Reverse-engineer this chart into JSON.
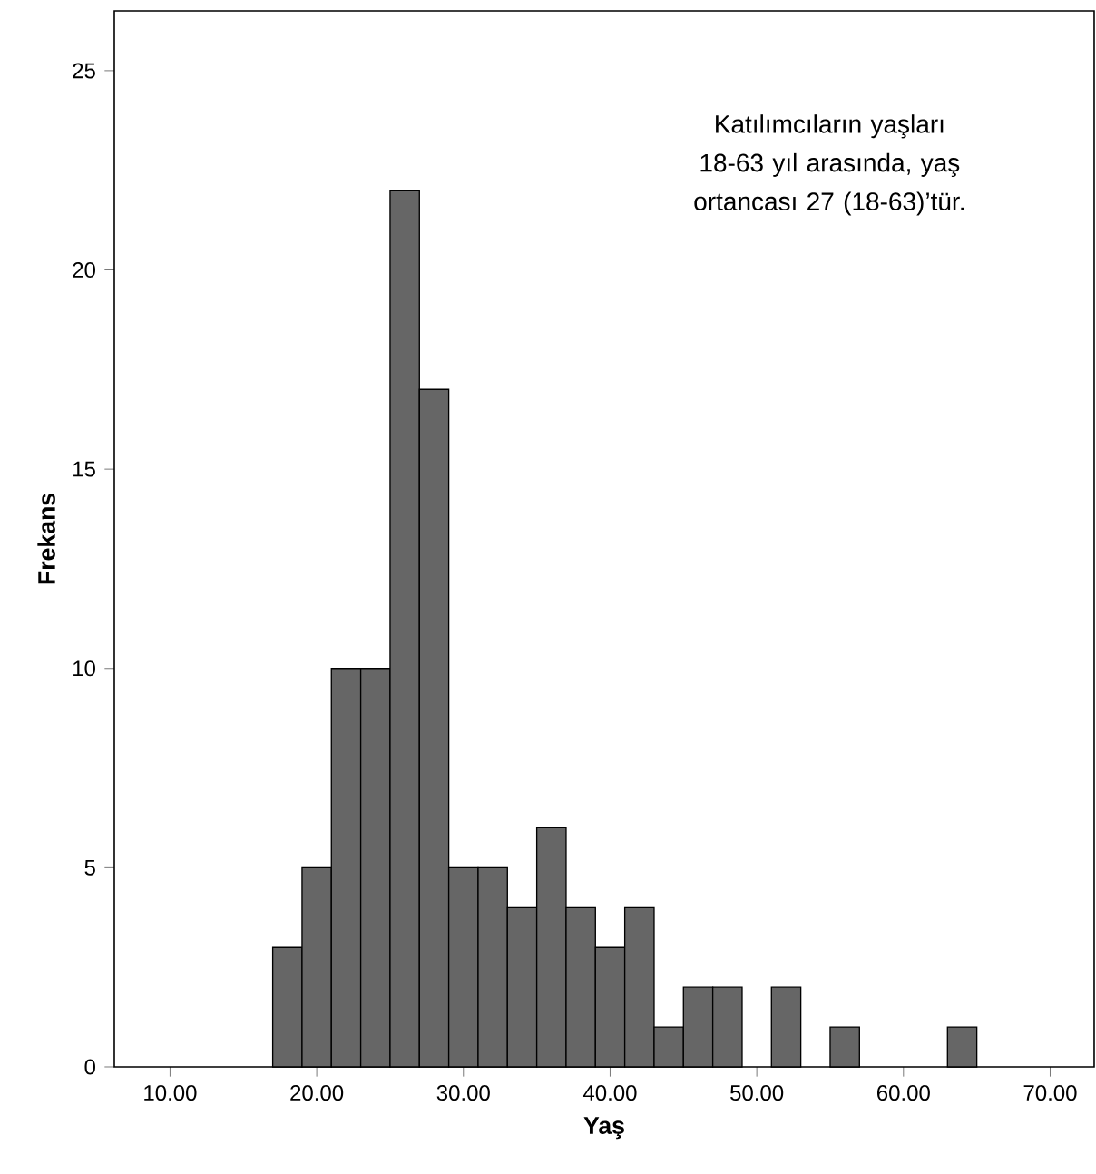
{
  "chart_data": {
    "type": "histogram",
    "xlabel": "Yaş",
    "ylabel": "Frekans",
    "bins": [
      17,
      19,
      21,
      23,
      25,
      27,
      29,
      31,
      33,
      35,
      37,
      39,
      41,
      43,
      45,
      47,
      49,
      51,
      53,
      55,
      57,
      59,
      61,
      63,
      65
    ],
    "values": [
      3,
      5,
      10,
      10,
      22,
      17,
      5,
      5,
      4,
      6,
      4,
      3,
      4,
      1,
      2,
      2,
      0,
      2,
      0,
      1,
      0,
      0,
      0,
      1
    ],
    "color": "#666666",
    "xlim": [
      6.2,
      73
    ],
    "ylim": [
      0,
      26.5
    ],
    "xticks": [
      {
        "value": 10,
        "label": "10.00"
      },
      {
        "value": 20,
        "label": "20.00"
      },
      {
        "value": 30,
        "label": "30.00"
      },
      {
        "value": 40,
        "label": "40.00"
      },
      {
        "value": 50,
        "label": "50.00"
      },
      {
        "value": 60,
        "label": "60.00"
      },
      {
        "value": 70,
        "label": "70.00"
      }
    ],
    "yticks": [
      0,
      5,
      10,
      15,
      20,
      25
    ],
    "annotations": [
      "Katılımcıların yaşları 18-63 yıl arasında, yaş ortancası 27 (18-63)’tür."
    ]
  }
}
